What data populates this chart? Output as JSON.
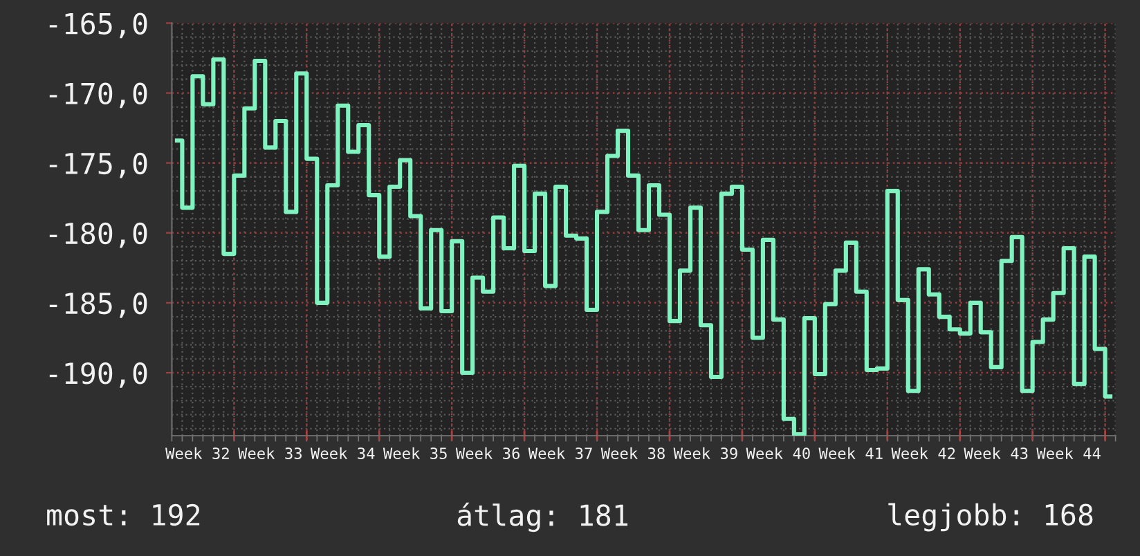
{
  "chart_data": {
    "type": "step",
    "categories": [
      null,
      null,
      "Week 32",
      null,
      null,
      null,
      null,
      null,
      null,
      "Week 33",
      null,
      null,
      null,
      null,
      null,
      null,
      "Week 34",
      null,
      null,
      null,
      null,
      null,
      null,
      "Week 35",
      null,
      null,
      null,
      null,
      null,
      null,
      "Week 36",
      null,
      null,
      null,
      null,
      null,
      null,
      "Week 37",
      null,
      null,
      null,
      null,
      null,
      null,
      "Week 38",
      null,
      null,
      null,
      null,
      null,
      null,
      "Week 39",
      null,
      null,
      null,
      null,
      null,
      null,
      "Week 40",
      null,
      null,
      null,
      null,
      null,
      null,
      "Week 41",
      null,
      null,
      null,
      null,
      null,
      null,
      "Week 42",
      null,
      null,
      null,
      null,
      null,
      null,
      "Week 43",
      null,
      null,
      null,
      null,
      null,
      null,
      "Week 44",
      null,
      null,
      null,
      null
    ],
    "series": [
      {
        "color": "#80f2c0",
        "values": [
          -173.4,
          -178.2,
          -168.8,
          -170.8,
          -167.6,
          -181.5,
          -175.9,
          -171.1,
          -167.7,
          -173.9,
          -172.0,
          -178.5,
          -168.6,
          -174.7,
          -185.0,
          -176.6,
          -170.9,
          -174.2,
          -172.3,
          -177.3,
          -181.7,
          -176.7,
          -174.8,
          -178.8,
          -185.4,
          -179.8,
          -185.6,
          -180.6,
          -190.0,
          -183.2,
          -184.2,
          -178.9,
          -181.1,
          -175.2,
          -181.3,
          -177.2,
          -183.8,
          -176.7,
          -180.2,
          -180.4,
          -185.5,
          -178.5,
          -174.5,
          -172.7,
          -175.9,
          -179.8,
          -176.6,
          -178.7,
          -186.3,
          -182.7,
          -178.2,
          -186.6,
          -190.3,
          -177.2,
          -176.7,
          -181.2,
          -187.5,
          -180.5,
          -186.2,
          -193.3,
          -194.4,
          -186.1,
          -190.1,
          -185.1,
          -182.7,
          -180.7,
          -184.2,
          -189.8,
          -189.7,
          -177.0,
          -184.8,
          -191.3,
          -182.6,
          -184.4,
          -186.0,
          -186.9,
          -187.2,
          -185.0,
          -187.1,
          -189.6,
          -182.0,
          -180.3,
          -191.3,
          -187.8,
          -186.2,
          -184.3,
          -181.1,
          -190.8,
          -181.7,
          -188.3,
          -191.7
        ]
      }
    ],
    "ylim": [
      -194.5,
      -165
    ],
    "yticks": [
      {
        "value": -190,
        "label": "-190,0"
      },
      {
        "value": -185,
        "label": "-185,0"
      },
      {
        "value": -180,
        "label": "-180,0"
      },
      {
        "value": -175,
        "label": "-175,0"
      },
      {
        "value": -170,
        "label": "-170,0"
      },
      {
        "value": -165,
        "label": "-165,0"
      }
    ],
    "grid": true,
    "annotations": [
      "most: 192",
      "átlag: 181",
      "legjobb: 168"
    ]
  }
}
